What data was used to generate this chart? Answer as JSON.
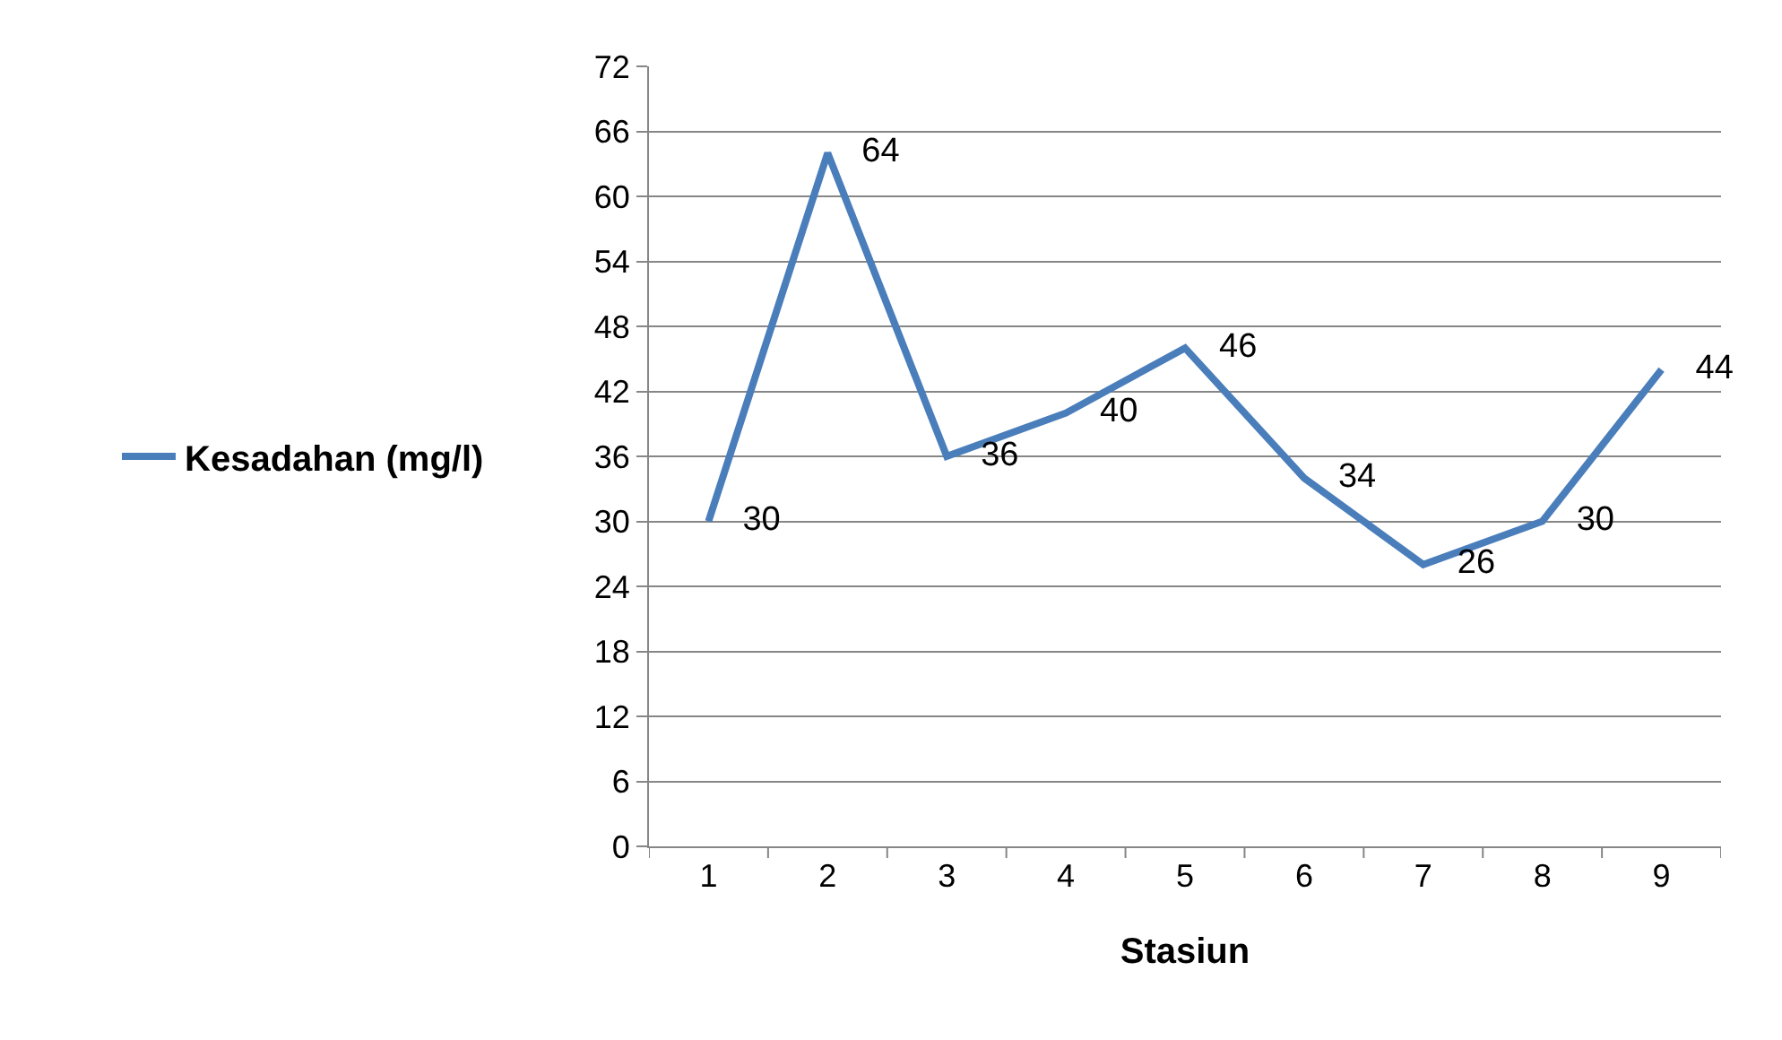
{
  "chart_data": {
    "type": "line",
    "xlabel": "Stasiun",
    "categories": [
      "1",
      "2",
      "3",
      "4",
      "5",
      "6",
      "7",
      "8",
      "9"
    ],
    "series": [
      {
        "name": "Kesadahan (mg/l)",
        "color": "#4a7ebb",
        "values": [
          30,
          64,
          36,
          40,
          46,
          34,
          26,
          30,
          44
        ]
      }
    ],
    "ylim": [
      0,
      72
    ],
    "yticks": [
      0,
      6,
      12,
      18,
      24,
      30,
      36,
      42,
      48,
      54,
      60,
      66,
      72
    ],
    "grid": "y",
    "legend": "left",
    "data_labels": true,
    "marker": "none",
    "line_style": "solid"
  }
}
